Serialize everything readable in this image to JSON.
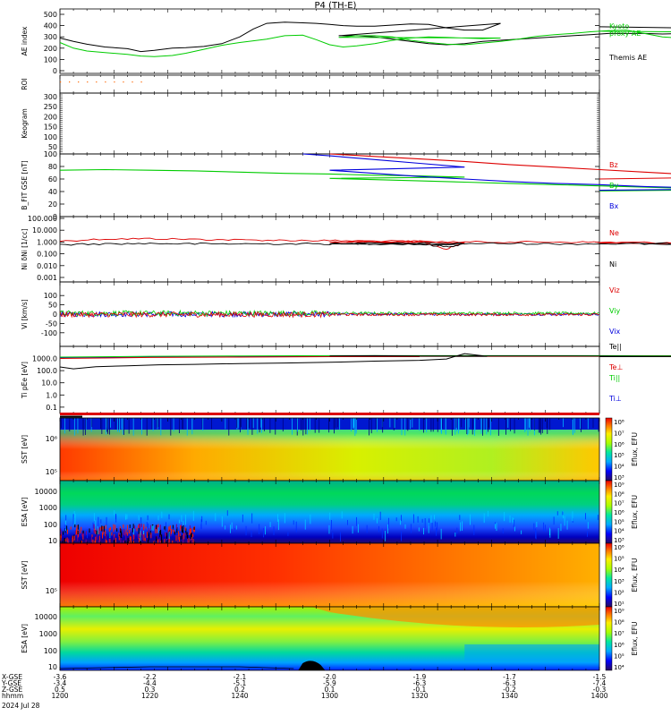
{
  "title": "P4 (TH-E)",
  "colors": {
    "black": "#000000",
    "red": "#dd0000",
    "green": "#00cc00",
    "blue": "#0000dd",
    "orange": "#ff6600"
  },
  "chart_data": [
    {
      "name": "ae",
      "type": "line",
      "ylabel": "AE index",
      "yticks": [
        "500",
        "400",
        "300",
        "200",
        "100",
        "0"
      ],
      "ylim": [
        0,
        500
      ],
      "legend": [
        "Kyoto",
        "proxy AE",
        "Themis AE"
      ],
      "series": [
        {
          "name": "Themis AE",
          "color": "#000000",
          "x": [
            1200,
            1203,
            1206,
            1210,
            1215,
            1218,
            1221,
            1225,
            1228,
            1232,
            1236,
            1240,
            1243,
            1246,
            1250,
            1254,
            1257,
            1260,
            1263,
            1266,
            1270,
            1274,
            1278,
            1282,
            1286,
            1290,
            1294,
            1298,
            1302,
            1306,
            1310,
            1314,
            1318,
            1322,
            1326,
            1330,
            1334,
            1338,
            1342,
            1346,
            1350,
            1354,
            1358,
            1362,
            1366,
            1370,
            1374,
            1378,
            1382,
            1386,
            1390,
            1394,
            1397,
            1400
          ],
          "y": [
            290,
            260,
            235,
            210,
            195,
            170,
            180,
            200,
            205,
            215,
            240,
            300,
            370,
            420,
            430,
            425,
            420,
            410,
            400,
            395,
            395,
            405,
            415,
            410,
            380,
            360,
            360,
            420,
            310,
            310,
            300,
            280,
            260,
            240,
            230,
            240,
            260,
            270,
            280,
            290,
            300,
            310,
            320,
            330,
            330,
            330,
            325,
            330,
            330,
            335,
            340,
            350,
            370,
            390
          ]
        },
        {
          "name": "Kyoto proxy AE",
          "color": "#00cc00",
          "x": [
            1200,
            1203,
            1206,
            1210,
            1215,
            1218,
            1221,
            1225,
            1228,
            1232,
            1236,
            1240,
            1243,
            1246,
            1250,
            1254,
            1257,
            1260,
            1263,
            1266,
            1270,
            1274,
            1278,
            1282,
            1286,
            1290,
            1294,
            1298,
            1302,
            1306,
            1310,
            1314,
            1318,
            1322,
            1326,
            1330,
            1334,
            1338,
            1342,
            1346,
            1350,
            1354,
            1358,
            1362,
            1366,
            1370,
            1374,
            1378,
            1382,
            1386,
            1390,
            1394,
            1397,
            1400
          ],
          "y": [
            250,
            200,
            175,
            160,
            145,
            130,
            125,
            135,
            155,
            190,
            225,
            250,
            265,
            280,
            310,
            315,
            275,
            230,
            210,
            220,
            240,
            270,
            290,
            300,
            295,
            290,
            285,
            290,
            295,
            310,
            310,
            300,
            270,
            250,
            235,
            230,
            245,
            260,
            280,
            305,
            320,
            330,
            345,
            355,
            360,
            330,
            300,
            290,
            300,
            310,
            320,
            330,
            340,
            350
          ]
        }
      ]
    },
    {
      "name": "roi",
      "type": "scatter",
      "ylabel": "ROI",
      "series": [
        {
          "name": "",
          "color": "#ff6600",
          "x": [
            1200,
            1202,
            1204,
            1206,
            1208,
            1210,
            1212,
            1214,
            1216,
            1218
          ],
          "y": [
            1,
            1,
            1,
            1,
            1,
            1,
            1,
            1,
            1,
            1
          ]
        }
      ]
    },
    {
      "name": "keogram",
      "type": "heatmap",
      "ylabel": "Keogram",
      "yticks": [
        "300",
        "250",
        "200",
        "150",
        "100",
        "50"
      ],
      "ylim": [
        0,
        320
      ]
    },
    {
      "name": "bfield",
      "type": "line",
      "ylabel": "B_FIT GSE [nT]",
      "yticks": [
        "100",
        "80",
        "60",
        "40",
        "20",
        "0"
      ],
      "ylim": [
        0,
        100
      ],
      "legend": [
        "Bz",
        "By",
        "Bx"
      ],
      "series": [
        {
          "name": "Bz",
          "color": "#dd0000",
          "x": [
            1300,
            1310,
            1320,
            1330,
            1340,
            1350,
            1360,
            1370,
            1380,
            1390,
            1400
          ],
          "y": [
            100,
            96,
            92,
            88,
            83,
            79,
            75,
            71,
            67,
            63,
            60
          ]
        },
        {
          "name": "By",
          "color": "#00cc00",
          "x": [
            1200,
            1210,
            1220,
            1230,
            1240,
            1250,
            1260,
            1270,
            1280,
            1290,
            1300,
            1310,
            1320,
            1330,
            1340,
            1350,
            1360,
            1370,
            1380,
            1390,
            1400
          ],
          "y": [
            74,
            75,
            74,
            73,
            71,
            69,
            68,
            66,
            65,
            63,
            61,
            59,
            57,
            55,
            53,
            51,
            49,
            47,
            45,
            43,
            41
          ]
        },
        {
          "name": "Bx",
          "color": "#0000dd",
          "x": [
            1254,
            1260,
            1270,
            1280,
            1290,
            1300,
            1310,
            1320,
            1330,
            1340,
            1350,
            1360,
            1370,
            1380,
            1390,
            1400
          ],
          "y": [
            100,
            97,
            91,
            85,
            79,
            74,
            69,
            64,
            60,
            56,
            53,
            51,
            48,
            46,
            44,
            42
          ]
        }
      ]
    },
    {
      "name": "density",
      "type": "line",
      "ylabel": "Ni δNi [1/cc]",
      "yticks": [
        "100.000",
        "10.000",
        "1.000",
        "0.100",
        "0.010",
        "0.001"
      ],
      "ylog": true,
      "ylim": [
        0.001,
        100
      ],
      "legend": [
        "Ne",
        "Ni"
      ],
      "series": [
        {
          "name": "Ne",
          "color": "#dd0000",
          "x": [
            1200,
            1210,
            1220,
            1230,
            1240,
            1250,
            1260,
            1270,
            1280,
            1286,
            1290,
            1300,
            1310,
            1320,
            1330,
            1340,
            1350,
            1360,
            1370,
            1380,
            1390,
            1400
          ],
          "y": [
            1.2,
            1.8,
            1.9,
            1.7,
            1.5,
            1.4,
            1.3,
            1.2,
            1.1,
            0.25,
            0.9,
            1.0,
            1.1,
            1.1,
            1.0,
            1.0,
            1.0,
            0.95,
            0.9,
            0.9,
            0.85,
            0.8
          ]
        },
        {
          "name": "Ni",
          "color": "#000000",
          "x": [
            1200,
            1210,
            1220,
            1230,
            1240,
            1250,
            1260,
            1270,
            1280,
            1286,
            1290,
            1300,
            1310,
            1320,
            1330,
            1340,
            1350,
            1360,
            1370,
            1380,
            1390,
            1400
          ],
          "y": [
            0.6,
            0.7,
            0.75,
            0.7,
            0.7,
            0.7,
            0.7,
            0.7,
            0.65,
            0.4,
            0.65,
            0.75,
            0.75,
            0.75,
            0.75,
            0.75,
            0.7,
            0.7,
            0.7,
            0.7,
            0.7,
            0.7
          ]
        }
      ]
    },
    {
      "name": "velocity",
      "type": "line",
      "ylabel": "Vi [km/s]",
      "yticks": [
        "100",
        "50",
        "0",
        "-50",
        "-100"
      ],
      "ylim": [
        -150,
        150
      ],
      "legend": [
        "Viz",
        "Viy",
        "Vix"
      ],
      "series": [
        {
          "name": "Vix",
          "color": "#0000dd",
          "x": [
            1200,
            1240,
            1290,
            1300,
            1400
          ],
          "y": [
            0,
            5,
            0,
            -5,
            -2
          ]
        },
        {
          "name": "Viy",
          "color": "#00cc00",
          "x": [
            1200,
            1240,
            1290,
            1300,
            1400
          ],
          "y": [
            5,
            8,
            3,
            0,
            2
          ]
        },
        {
          "name": "Viz",
          "color": "#dd0000",
          "x": [
            1200,
            1240,
            1290,
            1300,
            1400
          ],
          "y": [
            0,
            2,
            0,
            -3,
            -1
          ]
        }
      ]
    },
    {
      "name": "temperature",
      "type": "line",
      "ylabel": "Ti pEe [eV]",
      "yticks": [
        "1000.0",
        "100.0",
        "10.0",
        "1.0",
        "0.1"
      ],
      "ylog": true,
      "ylim": [
        0.05,
        5000
      ],
      "legend": [
        "Te||",
        "Te⊥",
        "Ti||",
        "Ti⊥"
      ],
      "series": [
        {
          "name": "Ti⊥",
          "color": "#0000dd",
          "x": [
            1200,
            1220,
            1240,
            1260,
            1280,
            1300,
            1320,
            1340,
            1360,
            1380,
            1400
          ],
          "y": [
            1100,
            1300,
            1400,
            1450,
            1500,
            1600,
            1600,
            1600,
            1550,
            1500,
            1500
          ]
        },
        {
          "name": "Ti||",
          "color": "#00cc00",
          "x": [
            1200,
            1220,
            1240,
            1260,
            1280,
            1300,
            1320,
            1340,
            1360,
            1380,
            1400
          ],
          "y": [
            1300,
            1500,
            1600,
            1700,
            1700,
            1700,
            1700,
            1700,
            1700,
            1650,
            1600
          ]
        },
        {
          "name": "Te⊥",
          "color": "#dd0000",
          "x": [
            1200,
            1220,
            1240,
            1260,
            1280,
            1300,
            1320,
            1340,
            1360,
            1380,
            1400
          ],
          "y": [
            1000,
            1200,
            1300,
            1400,
            1400,
            1500,
            1500,
            1500,
            1500,
            1450,
            1450
          ]
        },
        {
          "name": "Te||",
          "color": "#000000",
          "x": [
            1200,
            1203,
            1208,
            1215,
            1222,
            1230,
            1240,
            1250,
            1260,
            1270,
            1280,
            1286,
            1290,
            1295,
            1300,
            1310,
            1320,
            1330,
            1340,
            1350,
            1360,
            1370,
            1380,
            1390,
            1400
          ],
          "y": [
            200,
            140,
            210,
            250,
            300,
            330,
            380,
            420,
            480,
            600,
            700,
            900,
            2500,
            1500,
            1600,
            1700,
            1600,
            1600,
            1600,
            1600,
            1550,
            1500,
            1500,
            1450,
            1400
          ]
        }
      ]
    },
    {
      "name": "sst-ion",
      "type": "heatmap",
      "ylabel": "SST [eV]",
      "yticks": [
        "10⁶",
        "10⁵"
      ],
      "colorbar": {
        "label": "Eflux, EFU",
        "ticks": [
          "10⁸",
          "10⁷",
          "10⁶",
          "10⁵",
          "10⁴",
          "10³"
        ]
      }
    },
    {
      "name": "esa-ion",
      "type": "heatmap",
      "ylabel": "ESA [eV]",
      "yticks": [
        "10000",
        "1000",
        "100",
        "10"
      ],
      "colorbar": {
        "label": "Eflux, EFU",
        "ticks": [
          "10⁹",
          "10⁸",
          "10⁷",
          "10⁶",
          "10⁵",
          "10⁴",
          "10³"
        ]
      }
    },
    {
      "name": "sst-electron",
      "type": "heatmap",
      "ylabel": "SST [eV]",
      "yticks": [
        "10⁵"
      ],
      "colorbar": {
        "label": "Eflux, EFU",
        "ticks": [
          "10⁶",
          "10⁵",
          "10⁴",
          "10³",
          "10²",
          "10¹"
        ]
      }
    },
    {
      "name": "esa-electron",
      "type": "heatmap",
      "ylabel": "ESA [eV]",
      "yticks": [
        "10000",
        "1000",
        "100",
        "10"
      ],
      "colorbar": {
        "label": "Eflux, EFU",
        "ticks": [
          "10⁹",
          "10⁸",
          "10⁷",
          "10⁶",
          "10⁵",
          "10⁴"
        ]
      }
    }
  ],
  "xaxis": {
    "row_labels": [
      "X-GSE",
      "Y-GSE",
      "Z-GSE",
      "hhmm",
      "2024 Jul 28"
    ],
    "columns": [
      {
        "x": 1200,
        "values": [
          "-3.6",
          "-3.4",
          "0.5",
          "1200"
        ]
      },
      {
        "x": 1220,
        "values": [
          "-2.2",
          "-4.4",
          "0.3",
          "1220"
        ]
      },
      {
        "x": 1240,
        "values": [
          "-2.1",
          "-5.1",
          "0.2",
          "1240"
        ]
      },
      {
        "x": 1300,
        "values": [
          "-2.0",
          "-5.9",
          "0.1",
          "1300"
        ]
      },
      {
        "x": 1320,
        "values": [
          "-1.9",
          "-6.3",
          "-0.1",
          "1320"
        ]
      },
      {
        "x": 1340,
        "values": [
          "-1.7",
          "-6.3",
          "-0.2",
          "1340"
        ]
      },
      {
        "x": 1400,
        "values": [
          "-1.5",
          "-7.4",
          "-0.3",
          "1400"
        ]
      }
    ]
  }
}
